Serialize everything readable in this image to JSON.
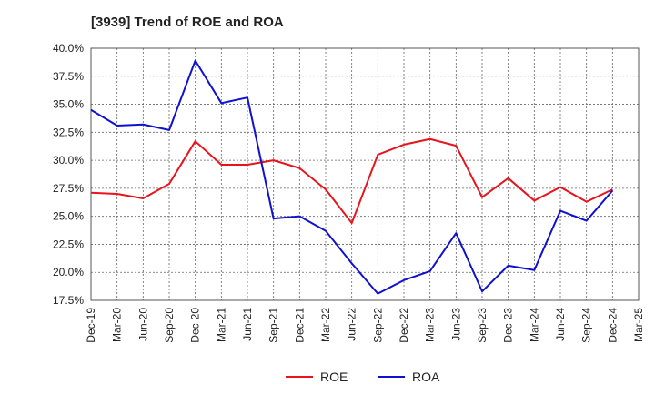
{
  "chart_data": {
    "type": "line",
    "title": "[3939]  Trend of ROE and ROA",
    "xlabel": "",
    "ylabel": "",
    "ylim": [
      17.5,
      40.0
    ],
    "y_ticks": [
      "17.5%",
      "20.0%",
      "22.5%",
      "25.0%",
      "27.5%",
      "30.0%",
      "32.5%",
      "35.0%",
      "37.5%",
      "40.0%"
    ],
    "categories": [
      "Dec-19",
      "Mar-20",
      "Jun-20",
      "Sep-20",
      "Dec-20",
      "Mar-21",
      "Jun-21",
      "Sep-21",
      "Dec-21",
      "Mar-22",
      "Jun-22",
      "Sep-22",
      "Dec-22",
      "Mar-23",
      "Jun-23",
      "Sep-23",
      "Dec-23",
      "Mar-24",
      "Jun-24",
      "Sep-24",
      "Dec-24",
      "Mar-25"
    ],
    "series": [
      {
        "name": "ROE",
        "color": "#e8141b",
        "values": [
          27.1,
          27.0,
          26.6,
          27.9,
          31.7,
          29.6,
          29.6,
          30.0,
          29.3,
          27.4,
          24.4,
          30.5,
          31.4,
          31.9,
          31.3,
          26.7,
          28.4,
          26.4,
          27.6,
          26.3,
          27.4,
          null
        ]
      },
      {
        "name": "ROA",
        "color": "#1010d0",
        "values": [
          34.5,
          33.1,
          33.2,
          32.7,
          38.9,
          35.1,
          35.6,
          24.8,
          25.0,
          23.7,
          20.8,
          18.1,
          19.3,
          20.1,
          23.5,
          18.3,
          20.6,
          20.2,
          25.5,
          24.6,
          27.3,
          null
        ]
      }
    ],
    "grid": true,
    "legend_position": "bottom-center"
  }
}
